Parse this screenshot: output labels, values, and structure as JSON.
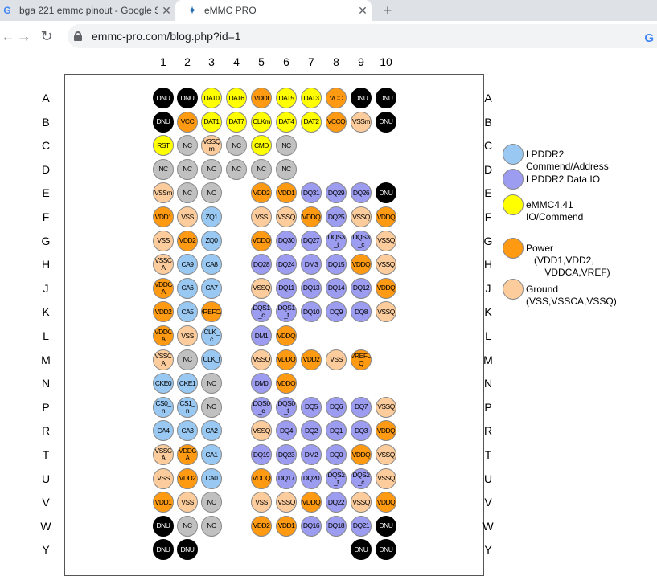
{
  "tabs": [
    {
      "title": "bga 221 emmc pinout - Google S",
      "close": "✕"
    },
    {
      "title": "eMMC PRO",
      "close": "✕"
    }
  ],
  "new_tab": "+",
  "url": "emmc-pro.com/blog.php?id=1",
  "columns": [
    "1",
    "2",
    "3",
    "4",
    "5",
    "6",
    "7",
    "8",
    "9",
    "10"
  ],
  "rows": [
    "A",
    "B",
    "C",
    "D",
    "E",
    "F",
    "G",
    "H",
    "J",
    "K",
    "L",
    "M",
    "N",
    "P",
    "R",
    "T",
    "U",
    "V",
    "W",
    "Y"
  ],
  "pins": {
    "A": [
      [
        "DNU",
        "black"
      ],
      [
        "DNU",
        "black"
      ],
      [
        "DAT0",
        "yellow"
      ],
      [
        "DAT6",
        "yellow"
      ],
      [
        "VDDI",
        "orange"
      ],
      [
        "DAT5",
        "yellow"
      ],
      [
        "DAT3",
        "yellow"
      ],
      [
        "VCC",
        "orange"
      ],
      [
        "DNU",
        "black"
      ],
      [
        "DNU",
        "black"
      ]
    ],
    "B": [
      [
        "DNU",
        "black"
      ],
      [
        "VCC",
        "orange"
      ],
      [
        "DAT1",
        "yellow"
      ],
      [
        "DAT7",
        "yellow"
      ],
      [
        "CLKm",
        "yellow"
      ],
      [
        "DAT4",
        "yellow"
      ],
      [
        "DAT2",
        "yellow"
      ],
      [
        "VCCQ",
        "orange"
      ],
      [
        "VSSm",
        "peach"
      ],
      [
        "DNU",
        "black"
      ]
    ],
    "C": [
      [
        "RST",
        "yellow"
      ],
      [
        "NC",
        "gray"
      ],
      [
        "VSSQ m",
        "peach"
      ],
      [
        "NC",
        "gray"
      ],
      [
        "CMD",
        "yellow"
      ],
      [
        "NC",
        "gray"
      ],
      null,
      null,
      null,
      null
    ],
    "D": [
      [
        "NC",
        "gray"
      ],
      [
        "NC",
        "gray"
      ],
      [
        "NC",
        "gray"
      ],
      [
        "NC",
        "gray"
      ],
      [
        "NC",
        "gray"
      ],
      [
        "NC",
        "gray"
      ],
      null,
      null,
      null,
      null
    ],
    "E": [
      [
        "VSSm",
        "peach"
      ],
      [
        "NC",
        "gray"
      ],
      [
        "NC",
        "gray"
      ],
      null,
      [
        "VDD2",
        "orange"
      ],
      [
        "VDD1",
        "orange"
      ],
      [
        "DQ31",
        "purple"
      ],
      [
        "DQ29",
        "purple"
      ],
      [
        "DQ26",
        "purple"
      ],
      [
        "DNU",
        "black"
      ]
    ],
    "F": [
      [
        "VDD1",
        "orange"
      ],
      [
        "VSS",
        "peach"
      ],
      [
        "ZQ1",
        "blue"
      ],
      null,
      [
        "VSS",
        "peach"
      ],
      [
        "VSSQ",
        "peach"
      ],
      [
        "VDDQ",
        "orange"
      ],
      [
        "DQ25",
        "purple"
      ],
      [
        "VSSQ",
        "peach"
      ],
      [
        "VDDQ",
        "orange"
      ]
    ],
    "G": [
      [
        "VSS",
        "peach"
      ],
      [
        "VDD2",
        "orange"
      ],
      [
        "ZQ0",
        "blue"
      ],
      null,
      [
        "VDDQ",
        "orange"
      ],
      [
        "DQ30",
        "purple"
      ],
      [
        "DQ27",
        "purple"
      ],
      [
        "DQS3 _t",
        "purple"
      ],
      [
        "DQS3 _c",
        "purple"
      ],
      [
        "VSSQ",
        "peach"
      ]
    ],
    "H": [
      [
        "VSSC A",
        "peach"
      ],
      [
        "CA9",
        "blue"
      ],
      [
        "CA8",
        "blue"
      ],
      null,
      [
        "DQ28",
        "purple"
      ],
      [
        "DQ24",
        "purple"
      ],
      [
        "DM3",
        "purple"
      ],
      [
        "DQ15",
        "purple"
      ],
      [
        "VDDQ",
        "orange"
      ],
      [
        "VSSQ",
        "peach"
      ]
    ],
    "J": [
      [
        "VDDC A",
        "orange"
      ],
      [
        "CA6",
        "blue"
      ],
      [
        "CA7",
        "blue"
      ],
      null,
      [
        "VSSQ",
        "peach"
      ],
      [
        "DQ11",
        "purple"
      ],
      [
        "DQ13",
        "purple"
      ],
      [
        "DQ14",
        "purple"
      ],
      [
        "DQ12",
        "purple"
      ],
      [
        "VDDQ",
        "orange"
      ]
    ],
    "K": [
      [
        "VDD2",
        "orange"
      ],
      [
        "CA5",
        "blue"
      ],
      [
        "VREFCA",
        "orange"
      ],
      null,
      [
        "DQS1 _c",
        "purple"
      ],
      [
        "DQS1 _t",
        "purple"
      ],
      [
        "DQ10",
        "purple"
      ],
      [
        "DQ9",
        "purple"
      ],
      [
        "DQ8",
        "purple"
      ],
      [
        "VSSQ",
        "peach"
      ]
    ],
    "L": [
      [
        "VDDC A",
        "orange"
      ],
      [
        "VSS",
        "peach"
      ],
      [
        "CLK_ c",
        "blue"
      ],
      null,
      [
        "DM1",
        "purple"
      ],
      [
        "VDDQ",
        "orange"
      ],
      null,
      null,
      null,
      null
    ],
    "M": [
      [
        "VSSC A",
        "peach"
      ],
      [
        "NC",
        "gray"
      ],
      [
        "CLK_t",
        "blue"
      ],
      null,
      [
        "VSSQ",
        "peach"
      ],
      [
        "VDDQ",
        "orange"
      ],
      [
        "VDD2",
        "orange"
      ],
      [
        "VSS",
        "peach"
      ],
      [
        "VREFD Q",
        "orange"
      ],
      null
    ],
    "N": [
      [
        "CKE0",
        "blue"
      ],
      [
        "CKE1",
        "blue"
      ],
      [
        "NC",
        "gray"
      ],
      null,
      [
        "DM0",
        "purple"
      ],
      [
        "VDDQ",
        "orange"
      ],
      null,
      null,
      null,
      null
    ],
    "P": [
      [
        "CS0_ n",
        "blue"
      ],
      [
        "CS1_ n",
        "blue"
      ],
      [
        "NC",
        "gray"
      ],
      null,
      [
        "DQS0 _c",
        "purple"
      ],
      [
        "DQS0 _t",
        "purple"
      ],
      [
        "DQ5",
        "purple"
      ],
      [
        "DQ6",
        "purple"
      ],
      [
        "DQ7",
        "purple"
      ],
      [
        "VSSQ",
        "peach"
      ]
    ],
    "R": [
      [
        "CA4",
        "blue"
      ],
      [
        "CA3",
        "blue"
      ],
      [
        "CA2",
        "blue"
      ],
      null,
      [
        "VSSQ",
        "peach"
      ],
      [
        "DQ4",
        "purple"
      ],
      [
        "DQ2",
        "purple"
      ],
      [
        "DQ1",
        "purple"
      ],
      [
        "DQ3",
        "purple"
      ],
      [
        "VDDQ",
        "orange"
      ]
    ],
    "T": [
      [
        "VSSC A",
        "peach"
      ],
      [
        "VDDC A",
        "orange"
      ],
      [
        "CA1",
        "blue"
      ],
      null,
      [
        "DQ19",
        "purple"
      ],
      [
        "DQ23",
        "purple"
      ],
      [
        "DM2",
        "purple"
      ],
      [
        "DQ0",
        "purple"
      ],
      [
        "VDDQ",
        "orange"
      ],
      [
        "VSSQ",
        "peach"
      ]
    ],
    "U": [
      [
        "VSS",
        "peach"
      ],
      [
        "VDD2",
        "orange"
      ],
      [
        "CA0",
        "blue"
      ],
      null,
      [
        "VDDQ",
        "orange"
      ],
      [
        "DQ17",
        "purple"
      ],
      [
        "DQ20",
        "purple"
      ],
      [
        "DQS2 _t",
        "purple"
      ],
      [
        "DQS2 _c",
        "purple"
      ],
      [
        "VSSQ",
        "peach"
      ]
    ],
    "V": [
      [
        "VDD1",
        "orange"
      ],
      [
        "VSS",
        "peach"
      ],
      [
        "NC",
        "gray"
      ],
      null,
      [
        "VSS",
        "peach"
      ],
      [
        "VSSQ",
        "peach"
      ],
      [
        "VDDQ",
        "orange"
      ],
      [
        "DQ22",
        "purple"
      ],
      [
        "VSSQ",
        "peach"
      ],
      [
        "VDDQ",
        "orange"
      ]
    ],
    "W": [
      [
        "DNU",
        "black"
      ],
      [
        "NC",
        "gray"
      ],
      [
        "NC",
        "gray"
      ],
      null,
      [
        "VDD2",
        "orange"
      ],
      [
        "VDD1",
        "orange"
      ],
      [
        "DQ16",
        "purple"
      ],
      [
        "DQ18",
        "purple"
      ],
      [
        "DQ21",
        "purple"
      ],
      [
        "DNU",
        "black"
      ]
    ],
    "Y": [
      [
        "DNU",
        "black"
      ],
      [
        "DNU",
        "black"
      ],
      null,
      null,
      null,
      null,
      null,
      null,
      [
        "DNU",
        "black"
      ],
      [
        "DNU",
        "black"
      ]
    ]
  },
  "legend": [
    {
      "label": "LPDDR2\nCommend/Address",
      "color": "#99c8f2"
    },
    {
      "label": "LPDDR2 Data IO",
      "color": "#9c9cf0"
    },
    {
      "label": "eMMC4.41\nIO/Commend",
      "color": "#ffff00"
    },
    {
      "label": "Power\n   (VDD1,VDD2,\n       VDDCA,VREF)",
      "color": "#ff9a12"
    },
    {
      "label": "Ground\n(VSS,VSSCA,VSSQ)",
      "color": "#fccc9c"
    }
  ]
}
